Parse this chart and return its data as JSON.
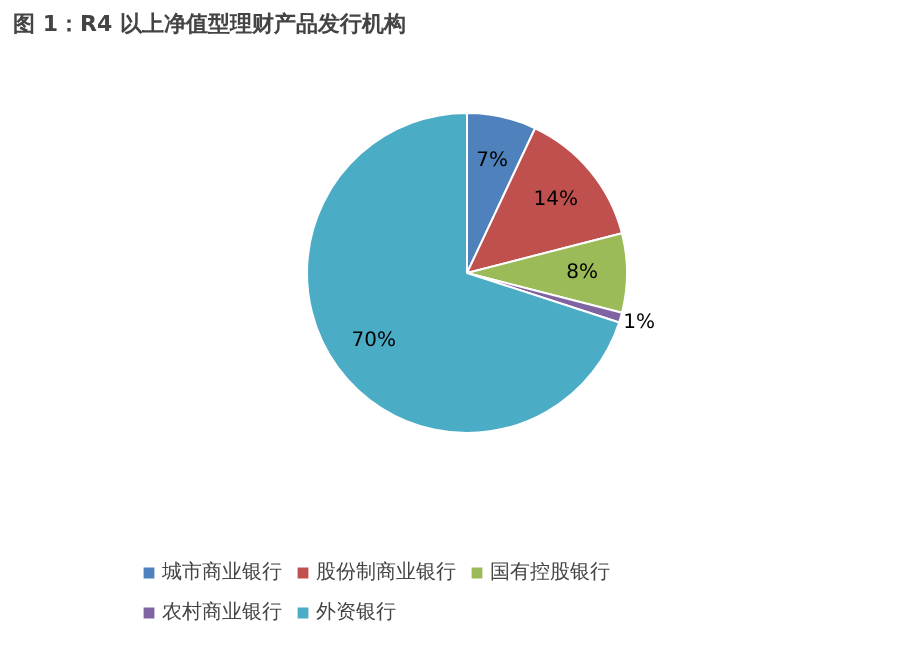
{
  "chart_data": {
    "type": "pie",
    "title": "图 1：R4 以上净值型理财产品发行机构",
    "categories": [
      "城市商业银行",
      "股份制商业银行",
      "国有控股银行",
      "农村商业银行",
      "外资银行"
    ],
    "values": [
      7,
      14,
      8,
      1,
      70
    ],
    "colors": [
      "#4f81bd",
      "#c0504d",
      "#9bbb59",
      "#8064a2",
      "#4bacc6"
    ],
    "value_labels": [
      "7%",
      "14%",
      "8%",
      "1%",
      "70%"
    ],
    "legend": "bottom"
  }
}
